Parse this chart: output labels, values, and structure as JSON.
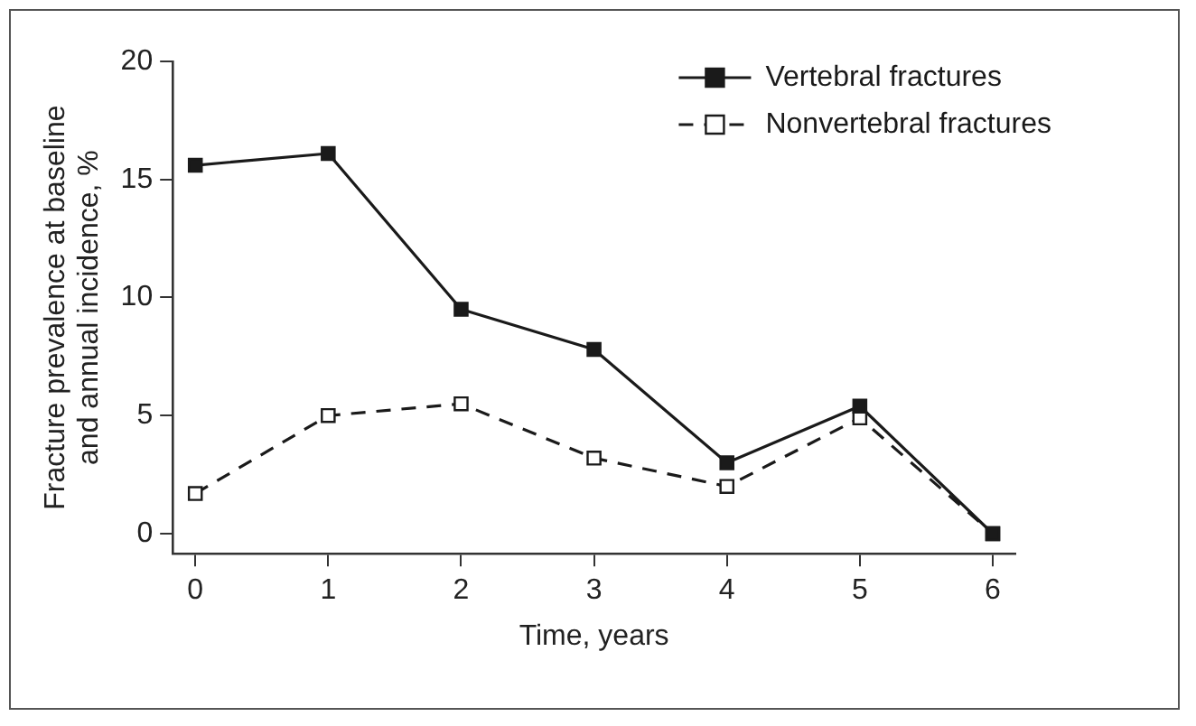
{
  "chart_data": {
    "type": "line",
    "xlabel": "Time, years",
    "ylabel": "Fracture prevalence at baseline and annual incidence, %",
    "x": [
      0,
      1,
      2,
      3,
      4,
      5,
      6
    ],
    "series": [
      {
        "name": "Vertebral fractures",
        "color": "#1a1a1a",
        "line_style": "solid",
        "values": [
          15.6,
          16.1,
          9.5,
          7.8,
          3.0,
          5.4,
          0
        ]
      },
      {
        "name": "Nonvertebral fractures",
        "color": "#1a1a1a",
        "line_style": "dashed",
        "values": [
          1.7,
          5.0,
          5.5,
          3.2,
          2.0,
          4.9,
          0
        ]
      }
    ],
    "xlim": [
      -0.17,
      6.17
    ],
    "xticks": [
      0,
      1,
      2,
      3,
      4,
      5,
      6
    ],
    "ylim": [
      -0.85,
      20
    ],
    "yticks": [
      0,
      5,
      10,
      15,
      20
    ],
    "grid": false,
    "legend": "top right",
    "marker": "square"
  }
}
